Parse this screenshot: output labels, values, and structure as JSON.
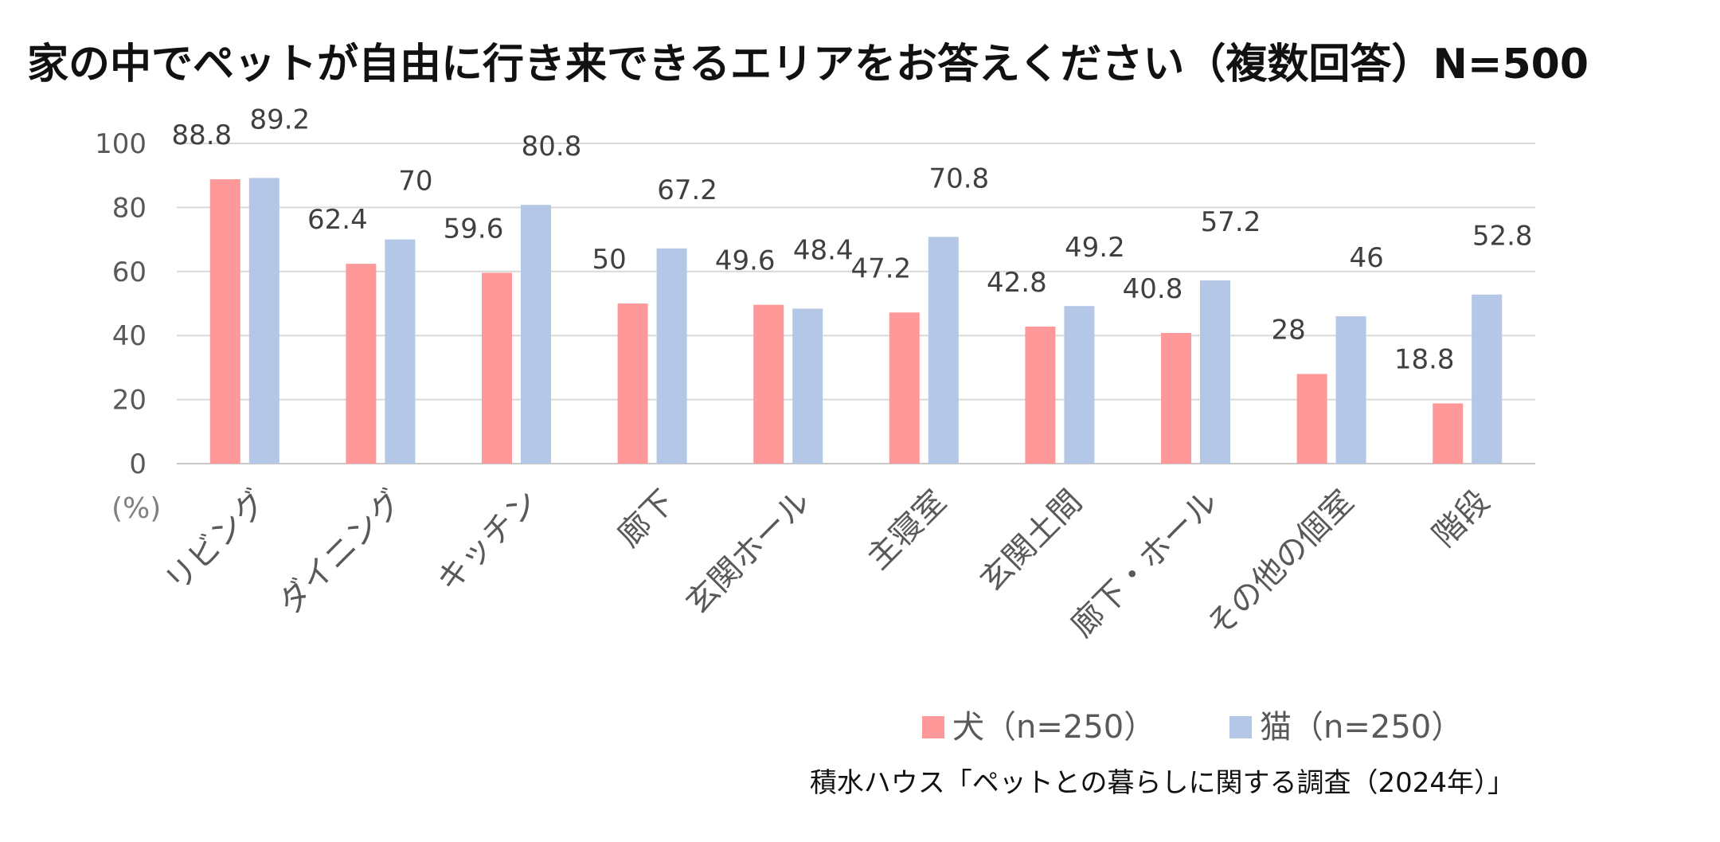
{
  "chart_data": {
    "type": "bar",
    "title": "家の中でペットが自由に行き来できるエリアをお答えください（複数回答）N=500",
    "unit_label": "(%)",
    "source": "積水ハウス「ペットとの暮らしに関する調査（2024年）」",
    "categories": [
      "リビング",
      "ダイニング",
      "キッチン",
      "廊下",
      "玄関ホール",
      "主寝室",
      "玄関土間",
      "廊下・ホール",
      "その他の個室",
      "階段"
    ],
    "series": [
      {
        "name": "犬（n=250）",
        "color": "#FF9999",
        "values": [
          88.8,
          62.4,
          59.6,
          50,
          49.6,
          47.2,
          42.8,
          40.8,
          28,
          18.8
        ]
      },
      {
        "name": "猫（n=250）",
        "color": "#B4C7E7",
        "values": [
          89.2,
          70,
          80.8,
          67.2,
          48.4,
          70.8,
          49.2,
          57.2,
          46,
          52.8
        ]
      }
    ],
    "ylim": [
      0,
      100
    ],
    "yticks": [
      0,
      20,
      40,
      60,
      80,
      100
    ],
    "grid": true,
    "legend_position": "bottom-right"
  }
}
